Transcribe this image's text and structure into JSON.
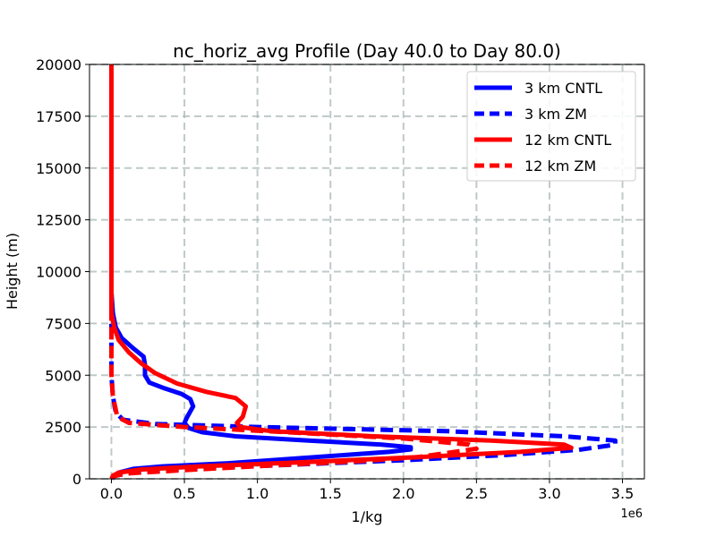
{
  "chart_data": {
    "type": "line",
    "title": "nc_horiz_avg Profile (Day 40.0 to Day 80.0)",
    "xlabel": "1/kg",
    "ylabel": "Height (m)",
    "x_offset_label": "1e6",
    "xlim": [
      -0.15,
      3.65
    ],
    "ylim": [
      0,
      20000
    ],
    "x_ticks": [
      0.0,
      0.5,
      1.0,
      1.5,
      2.0,
      2.5,
      3.0,
      3.5
    ],
    "x_tick_labels": [
      "0.0",
      "0.5",
      "1.0",
      "1.5",
      "2.0",
      "2.5",
      "3.0",
      "3.5"
    ],
    "y_ticks": [
      0,
      2500,
      5000,
      7500,
      10000,
      12500,
      15000,
      17500,
      20000
    ],
    "y_tick_labels": [
      "0",
      "2500",
      "5000",
      "7500",
      "10000",
      "12500",
      "15000",
      "17500",
      "20000"
    ],
    "grid": true,
    "legend_position": "top-right",
    "series": [
      {
        "name": "3 km CNTL",
        "color": "#0000ff",
        "dash": "solid",
        "points": [
          [
            0.01,
            0
          ],
          [
            0.02,
            150
          ],
          [
            0.05,
            300
          ],
          [
            0.15,
            480
          ],
          [
            0.35,
            600
          ],
          [
            0.8,
            750
          ],
          [
            1.2,
            950
          ],
          [
            1.6,
            1150
          ],
          [
            1.9,
            1300
          ],
          [
            2.05,
            1420
          ],
          [
            2.05,
            1520
          ],
          [
            1.85,
            1650
          ],
          [
            1.35,
            1850
          ],
          [
            0.85,
            2050
          ],
          [
            0.62,
            2250
          ],
          [
            0.53,
            2450
          ],
          [
            0.5,
            2700
          ],
          [
            0.52,
            3000
          ],
          [
            0.56,
            3500
          ],
          [
            0.54,
            3850
          ],
          [
            0.48,
            4100
          ],
          [
            0.35,
            4400
          ],
          [
            0.26,
            4650
          ],
          [
            0.23,
            5000
          ],
          [
            0.23,
            5500
          ],
          [
            0.22,
            5900
          ],
          [
            0.15,
            6300
          ],
          [
            0.07,
            6800
          ],
          [
            0.03,
            7300
          ],
          [
            0.01,
            8000
          ],
          [
            0.0,
            9000
          ],
          [
            0.0,
            10000
          ],
          [
            0.0,
            20000
          ]
        ]
      },
      {
        "name": "3 km ZM",
        "color": "#0000ff",
        "dash": "dashed",
        "points": [
          [
            0.0,
            0
          ],
          [
            0.02,
            150
          ],
          [
            0.15,
            300
          ],
          [
            0.6,
            500
          ],
          [
            1.3,
            700
          ],
          [
            2.0,
            900
          ],
          [
            2.7,
            1150
          ],
          [
            3.2,
            1400
          ],
          [
            3.45,
            1650
          ],
          [
            3.45,
            1850
          ],
          [
            3.1,
            2050
          ],
          [
            2.3,
            2300
          ],
          [
            1.0,
            2500
          ],
          [
            0.3,
            2650
          ],
          [
            0.08,
            2850
          ],
          [
            0.03,
            3200
          ],
          [
            0.01,
            4000
          ],
          [
            0.0,
            5000
          ],
          [
            0.0,
            8000
          ],
          [
            0.0,
            20000
          ]
        ]
      },
      {
        "name": "12 km CNTL",
        "color": "#ff0000",
        "dash": "solid",
        "points": [
          [
            0.01,
            0
          ],
          [
            0.01,
            150
          ],
          [
            0.05,
            300
          ],
          [
            0.2,
            450
          ],
          [
            0.6,
            600
          ],
          [
            1.3,
            800
          ],
          [
            2.1,
            1050
          ],
          [
            2.8,
            1300
          ],
          [
            3.15,
            1500
          ],
          [
            3.1,
            1650
          ],
          [
            2.6,
            1850
          ],
          [
            1.8,
            2050
          ],
          [
            1.1,
            2300
          ],
          [
            0.88,
            2500
          ],
          [
            0.86,
            2700
          ],
          [
            0.9,
            3000
          ],
          [
            0.92,
            3500
          ],
          [
            0.85,
            3900
          ],
          [
            0.65,
            4200
          ],
          [
            0.45,
            4600
          ],
          [
            0.3,
            5100
          ],
          [
            0.2,
            5600
          ],
          [
            0.12,
            6100
          ],
          [
            0.05,
            6700
          ],
          [
            0.02,
            7300
          ],
          [
            0.0,
            8000
          ],
          [
            0.0,
            9000
          ],
          [
            0.0,
            20000
          ]
        ]
      },
      {
        "name": "12 km ZM",
        "color": "#ff0000",
        "dash": "dashed",
        "points": [
          [
            0.0,
            0
          ],
          [
            0.01,
            120
          ],
          [
            0.1,
            260
          ],
          [
            0.5,
            420
          ],
          [
            1.1,
            650
          ],
          [
            1.7,
            850
          ],
          [
            2.1,
            1050
          ],
          [
            2.3,
            1250
          ],
          [
            2.5,
            1450
          ],
          [
            2.45,
            1650
          ],
          [
            2.0,
            1950
          ],
          [
            1.2,
            2250
          ],
          [
            0.5,
            2500
          ],
          [
            0.12,
            2700
          ],
          [
            0.04,
            3000
          ],
          [
            0.01,
            4000
          ],
          [
            0.0,
            5000
          ],
          [
            0.0,
            8000
          ],
          [
            0.0,
            20000
          ]
        ]
      }
    ]
  }
}
